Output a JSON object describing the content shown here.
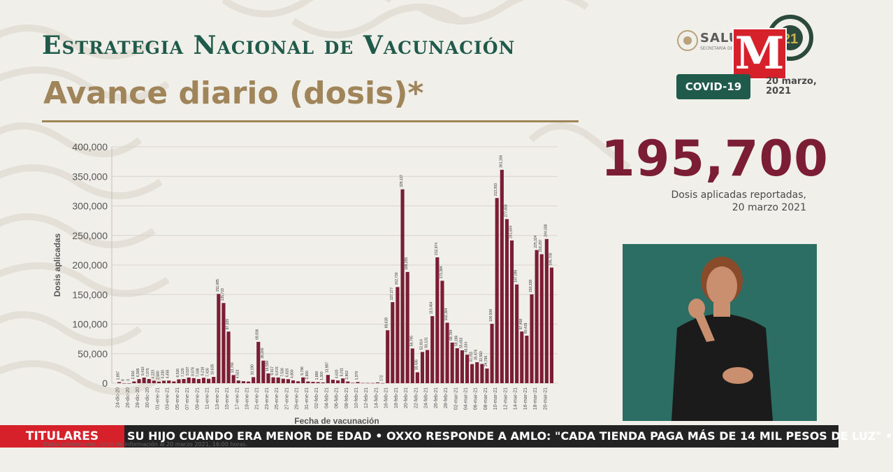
{
  "header": {
    "title": "Estrategia Nacional de Vacunación",
    "subtitle": "Avance diario (dosis)*",
    "logo_text": "SALUD",
    "logo_subtext": "SECRETARÍA DE SALUD",
    "badge": "COVID-19",
    "date_line1": "20 marzo,",
    "date_line2": "2021",
    "emblem_text": "21"
  },
  "summary": {
    "total": "195,700",
    "caption_line1": "Dosis aplicadas reportadas,",
    "caption_line2": "20 marzo 2021"
  },
  "channel_logo": "M",
  "ticker": {
    "tag": "TITULARES",
    "text": "SU HIJO CUANDO ERA MENOR DE EDAD   •   OXXO RESPONDE A AMLO: \"CADA TIENDA PAGA MÁS DE 14 MIL PESOS DE LUZ\"   •"
  },
  "footnote": "Datos preliminares, corte de información al 20 marzo 2021, 16:00 horas.",
  "colors": {
    "bar": "#7a1d35",
    "accent_green": "#1f5a4b",
    "accent_gold": "#a0845a",
    "ticker_red": "#d6212b"
  },
  "chart_data": {
    "type": "bar",
    "title": "Avance diario (dosis)*",
    "xlabel": "Fecha de vacunación",
    "ylabel": "Dosis aplicadas",
    "ylim": [
      0,
      400000
    ],
    "yticks": [
      "0",
      "50,000",
      "100,000",
      "150,000",
      "200,000",
      "250,000",
      "300,000",
      "350,000",
      "400,000"
    ],
    "grid": true,
    "x_tick_labels": [
      "24-dic-20",
      "26-dic-20",
      "28-dic-20",
      "30-dic-20",
      "01-ene-21",
      "03-ene-21",
      "05-ene-21",
      "07-ene-21",
      "09-ene-21",
      "11-ene-21",
      "13-ene-21",
      "15-ene-21",
      "17-ene-21",
      "19-ene-21",
      "21-ene-21",
      "23-ene-21",
      "25-ene-21",
      "27-ene-21",
      "29-ene-21",
      "31-ene-21",
      "02-feb-21",
      "04-feb-21",
      "06-feb-21",
      "08-feb-21",
      "10-feb-21",
      "12-feb-21",
      "14-feb-21",
      "16-feb-21",
      "18-feb-21",
      "20-feb-21",
      "22-feb-21",
      "24-feb-21",
      "26-feb-21",
      "28-feb-21",
      "02-mar-21",
      "04-mar-21",
      "06-mar-21",
      "08-mar-21",
      "10-mar-21",
      "12-mar-21",
      "14-mar-21",
      "16-mar-21",
      "18-mar-21",
      "20-mar-21"
    ],
    "values": [
      1897,
      8,
      3,
      2916,
      6909,
      9410,
      7075,
      4223,
      2580,
      4230,
      4455,
      3000,
      6526,
      7120,
      9537,
      8578,
      7038,
      9216,
      7426,
      10635,
      151085,
      135733,
      87329,
      13766,
      4523,
      3340,
      2800,
      10190,
      69936,
      38200,
      16550,
      9917,
      9676,
      7536,
      6820,
      4800,
      3200,
      9786,
      2900,
      2300,
      1888,
      1300,
      13987,
      5800,
      4620,
      8011,
      2863,
      700,
      1979,
      500,
      420,
      300,
      1300,
      172,
      89639,
      137177,
      162730,
      328127,
      188255,
      58795,
      18436,
      52814,
      56131,
      113464,
      212974,
      173384,
      102364,
      68784,
      59186,
      55653,
      48334,
      32311,
      35476,
      32550,
      24796,
      100508,
      313393,
      361156,
      277659,
      241604,
      167096,
      87458,
      80429,
      150338,
      225324,
      218297,
      244038,
      195700
    ],
    "data_labels": [
      "1,897",
      "8",
      "3",
      "2,916",
      "6,909",
      "9,410",
      "7,075",
      "4,223",
      "2,580",
      "4,230",
      "4,455",
      "",
      "6,526",
      "7,120",
      "9,537",
      "8,578",
      "7,038",
      "9,216",
      "7,426",
      "10,635",
      "151,085",
      "135,733",
      "87,329",
      "13,766",
      "4,523",
      "",
      "",
      "10,190",
      "69,936",
      "38,200",
      "16,550",
      "9,917",
      "9,676",
      "7,536",
      "6,820",
      "4,800",
      "",
      "9,786",
      "2,900",
      "",
      "1,888",
      "1,300",
      "13,987",
      "",
      "4,620",
      "8,011",
      "2,863",
      "",
      "1,979",
      "",
      "",
      "",
      "",
      "172",
      "89,639",
      "137,177",
      "162,730",
      "328,127",
      "188,255",
      "58,795",
      "18,436",
      "52,814",
      "56,131",
      "113,464",
      "212,974",
      "173,384",
      "102,364",
      "68,784",
      "59,186",
      "55,653",
      "48,334",
      "32,311",
      "35,476",
      "32,550",
      "24,796",
      "100,508",
      "313,393",
      "361,156",
      "277,659",
      "241,604",
      "167,096",
      "87,458",
      "80,429",
      "150,338",
      "225,324",
      "218,297",
      "244,038",
      "195,700"
    ]
  }
}
